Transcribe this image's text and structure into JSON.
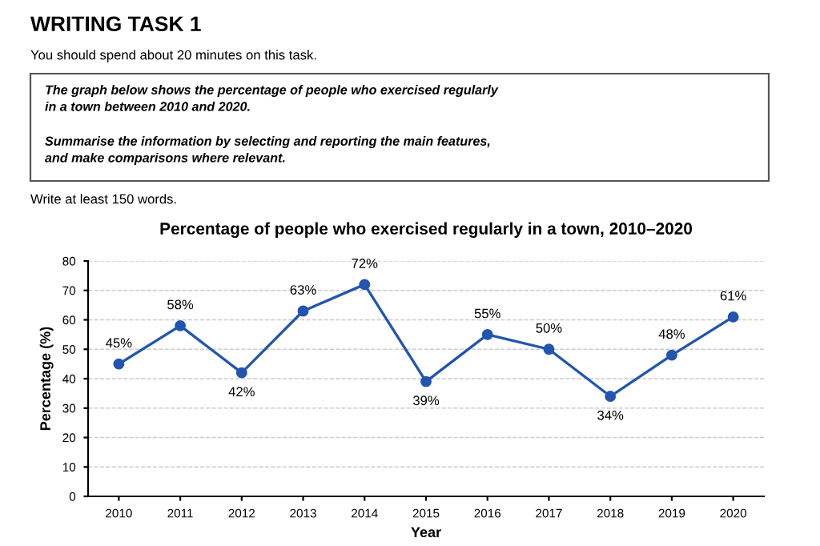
{
  "chart_data": {
    "type": "line",
    "title": "Percentage of people who exercised regularly in a town, 2010–2020",
    "xlabel": "Year",
    "ylabel": "Percentage (%)",
    "categories": [
      "2010",
      "2011",
      "2012",
      "2013",
      "2014",
      "2015",
      "2016",
      "2017",
      "2018",
      "2019",
      "2020"
    ],
    "series": [
      {
        "color": "#2255b0",
        "values": [
          45,
          58,
          42,
          63,
          72,
          39,
          55,
          50,
          34,
          48,
          61
        ],
        "value_labels": [
          "45%",
          "58%",
          "42%",
          "63%",
          "72%",
          "39%",
          "55%",
          "50%",
          "34%",
          "48%",
          "61%"
        ]
      }
    ],
    "ylim": [
      0,
      80
    ],
    "yticks": [
      0,
      10,
      20,
      30,
      40,
      50,
      60,
      70,
      80
    ],
    "grid": "y",
    "marker": "circle",
    "line_style": "solid",
    "annotations": [
      "WRITING TASK 1",
      "You should spend about 20 minutes on this task.",
      "The graph below shows the percentage of people who exercised regularly\nin a town between 2010 and 2020.",
      "Summarise the information by selecting and reporting the main features,\nand make comparisons where relevant.",
      "Write at least 150 words."
    ]
  }
}
